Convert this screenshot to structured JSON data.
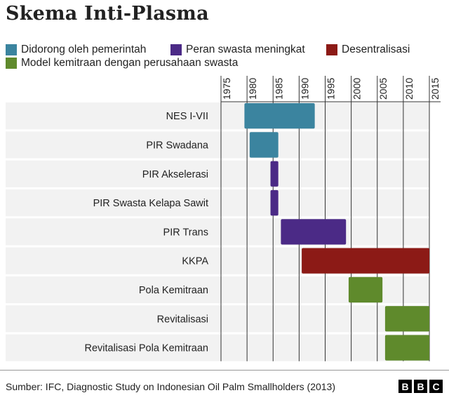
{
  "chart_data": {
    "type": "gantt",
    "title": "Skema Inti-Plasma",
    "legend": [
      {
        "name": "Didorong oleh pemerintah",
        "color": "#3b849f"
      },
      {
        "name": "Peran swasta meningkat",
        "color": "#4b2a86"
      },
      {
        "name": "Desentralisasi",
        "color": "#8c1a16"
      },
      {
        "name": "Model kemitraan dengan perusahaan swasta",
        "color": "#5f8a2c"
      }
    ],
    "x_ticks": [
      "1975",
      "1980",
      "1985",
      "1990",
      "1995",
      "2000",
      "2005",
      "2010",
      "2015"
    ],
    "xlim": [
      1975,
      2015
    ],
    "categories": [
      "NES I-VII",
      "PIR Swadana",
      "PIR Akselerasi",
      "PIR Swasta Kelapa Sawit",
      "PIR Trans",
      "KKPA",
      "Pola Kemitraan",
      "Revitalisasi",
      "Revitalisasi Pola Kemitraan"
    ],
    "bars": [
      {
        "label": "NES I-VII",
        "start": 1979.5,
        "end": 1993,
        "group": 0
      },
      {
        "label": "PIR Swadana",
        "start": 1980.5,
        "end": 1986,
        "group": 0
      },
      {
        "label": "PIR Akselerasi",
        "start": 1984.5,
        "end": 1986,
        "group": 1
      },
      {
        "label": "PIR Swasta Kelapa Sawit",
        "start": 1984.5,
        "end": 1986,
        "group": 1
      },
      {
        "label": "PIR Trans",
        "start": 1986.5,
        "end": 1999,
        "group": 1
      },
      {
        "label": "KKPA",
        "start": 1990.5,
        "end": 2015,
        "group": 2
      },
      {
        "label": "Pola Kemitraan",
        "start": 1999.5,
        "end": 2006,
        "group": 3
      },
      {
        "label": "Revitalisasi",
        "start": 2006.5,
        "end": 2015,
        "group": 3
      },
      {
        "label": "Revitalisasi Pola Kemitraan",
        "start": 2006.5,
        "end": 2015,
        "group": 3
      }
    ]
  },
  "footer": {
    "source": "Sumber: IFC, Diagnostic Study on Indonesian Oil Palm Smallholders (2013)",
    "logo_letters": [
      "B",
      "B",
      "C"
    ]
  }
}
